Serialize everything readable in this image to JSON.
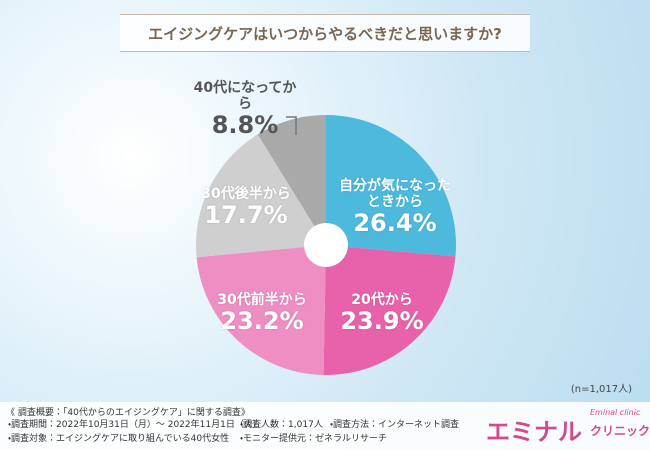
{
  "chart_data": {
    "type": "pie",
    "title": "エイジングケアはいつからやるべきだと思いますか?",
    "categories": [
      "自分が気になったときから",
      "20代から",
      "30代前半から",
      "30代後半から",
      "40代になってから"
    ],
    "values": [
      26.4,
      23.9,
      23.2,
      17.7,
      8.8
    ],
    "value_labels": [
      "26.4%",
      "23.9%",
      "23.2%",
      "17.7%",
      "8.8%"
    ],
    "colors": [
      "#4cb9dd",
      "#e862ab",
      "#ee8ec3",
      "#cfcfcf",
      "#a9a9a9"
    ],
    "note": "(n=1,017人)"
  },
  "footer": {
    "heading": "《 調査概要：「40代からのエイジングケア」に関する調査》",
    "items": [
      "・調査期間：2022年10月31日（月）～ 2022年11月1日（火）",
      "・調査人数：1,017人",
      "・調査方法：インターネット調査",
      "・調査対象：エイジングケアに取り組んでいる40代女性",
      "・モニター提供元：ゼネラルリサーチ"
    ]
  },
  "logo": {
    "main": "エミナル",
    "sub": "クリニック",
    "small": "Eminal clinic"
  }
}
